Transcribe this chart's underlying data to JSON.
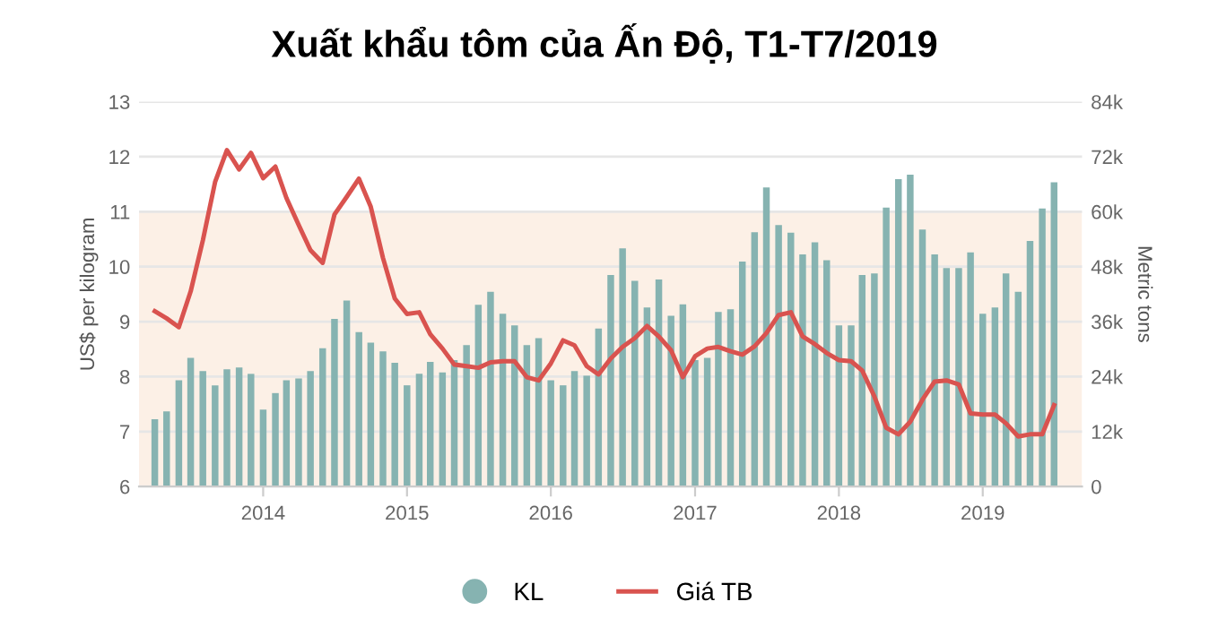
{
  "chart_data": {
    "type": "bar",
    "title": "Xuất khẩu tôm của Ấn Độ, T1-T7/2019",
    "ylabel": "US$ per kilogram",
    "y2label": "Metric tons",
    "x": [
      "2013-04",
      "2013-05",
      "2013-06",
      "2013-07",
      "2013-08",
      "2013-09",
      "2013-10",
      "2013-11",
      "2013-12",
      "2014-01",
      "2014-02",
      "2014-03",
      "2014-04",
      "2014-05",
      "2014-06",
      "2014-07",
      "2014-08",
      "2014-09",
      "2014-10",
      "2014-11",
      "2014-12",
      "2015-01",
      "2015-02",
      "2015-03",
      "2015-04",
      "2015-05",
      "2015-06",
      "2015-07",
      "2015-08",
      "2015-09",
      "2015-10",
      "2015-11",
      "2015-12",
      "2016-01",
      "2016-02",
      "2016-03",
      "2016-04",
      "2016-05",
      "2016-06",
      "2016-07",
      "2016-08",
      "2016-09",
      "2016-10",
      "2016-11",
      "2016-12",
      "2017-01",
      "2017-02",
      "2017-03",
      "2017-04",
      "2017-05",
      "2017-06",
      "2017-07",
      "2017-08",
      "2017-09",
      "2017-10",
      "2017-11",
      "2017-12",
      "2018-01",
      "2018-02",
      "2018-03",
      "2018-04",
      "2018-05",
      "2018-06",
      "2018-07",
      "2018-08",
      "2018-09",
      "2018-10",
      "2018-11",
      "2018-12",
      "2019-01",
      "2019-02",
      "2019-03",
      "2019-04",
      "2019-05",
      "2019-06",
      "2019-07"
    ],
    "series": [
      {
        "name": "KL",
        "axis": "y2",
        "color": "#86b3b1",
        "marker": "circle",
        "values": [
          14700,
          16400,
          23200,
          28100,
          25200,
          22100,
          25600,
          26000,
          24600,
          16800,
          20400,
          23200,
          23600,
          25200,
          30200,
          36600,
          40600,
          33700,
          31400,
          29500,
          27000,
          22100,
          24600,
          27200,
          24900,
          27600,
          30900,
          39700,
          42500,
          37700,
          35200,
          30900,
          32400,
          23200,
          22100,
          25200,
          24200,
          34500,
          46200,
          52000,
          44900,
          39100,
          45200,
          37300,
          39800,
          27600,
          28100,
          38100,
          38700,
          49100,
          55500,
          65300,
          57100,
          55400,
          50700,
          53300,
          49400,
          35200,
          35200,
          46200,
          46500,
          60900,
          67100,
          68100,
          56100,
          50700,
          47700,
          47700,
          51100,
          37700,
          39100,
          46500,
          42500,
          53600,
          60700,
          66400
        ]
      },
      {
        "name": "Giá TB",
        "type": "line",
        "color": "#d9534f",
        "marker": "none",
        "line_style": "solid",
        "values": [
          9.19,
          9.06,
          8.9,
          9.55,
          10.48,
          11.54,
          12.12,
          11.77,
          12.07,
          11.61,
          11.82,
          11.25,
          10.76,
          10.3,
          10.07,
          10.95,
          11.27,
          11.6,
          11.09,
          10.16,
          9.42,
          9.14,
          9.17,
          8.77,
          8.51,
          8.22,
          8.19,
          8.16,
          8.26,
          8.28,
          8.28,
          7.99,
          7.93,
          8.24,
          8.66,
          8.57,
          8.19,
          8.04,
          8.33,
          8.54,
          8.7,
          8.92,
          8.73,
          8.48,
          7.99,
          8.37,
          8.51,
          8.54,
          8.46,
          8.4,
          8.55,
          8.79,
          9.12,
          9.17,
          8.73,
          8.59,
          8.43,
          8.3,
          8.28,
          8.11,
          7.64,
          7.07,
          6.95,
          7.18,
          7.58,
          7.91,
          7.93,
          7.86,
          7.33,
          7.31,
          7.31,
          7.15,
          6.91,
          6.95,
          6.95,
          7.48
        ]
      }
    ],
    "xlim": [
      "2013-02-20",
      "2019-09-10"
    ],
    "xticks": [
      "2014",
      "2015",
      "2016",
      "2017",
      "2018",
      "2019"
    ],
    "ylim": [
      6,
      13
    ],
    "yticks": [
      6,
      7,
      8,
      9,
      10,
      11,
      12,
      13
    ],
    "y2lim": [
      0,
      84000
    ],
    "y2ticks": [
      0,
      {
        "value": 12000,
        "label": "12k"
      },
      {
        "value": 24000,
        "label": "24k"
      },
      {
        "value": 36000,
        "label": "36k"
      },
      {
        "value": 48000,
        "label": "48k"
      },
      {
        "value": 60000,
        "label": "60k"
      },
      {
        "value": 72000,
        "label": "72k"
      },
      {
        "value": 84000,
        "label": "84k"
      }
    ],
    "bands": [
      {
        "axis": "y",
        "from": 6,
        "to": 11,
        "color": "#fcf0e6"
      }
    ],
    "grid": "y",
    "legend": "bottom"
  }
}
